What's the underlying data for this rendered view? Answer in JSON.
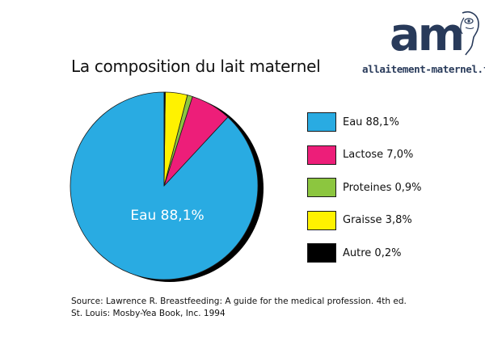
{
  "logo": {
    "mark": "am",
    "site": "allaitement-maternel.fr"
  },
  "chart_data": {
    "type": "pie",
    "title": "La composition du lait maternel",
    "slices": [
      {
        "name": "Eau",
        "value": 88.1,
        "label": "Eau 88,1%",
        "color": "#29abe2"
      },
      {
        "name": "Lactose",
        "value": 7.0,
        "label": "Lactose 7,0%",
        "color": "#ed1e79"
      },
      {
        "name": "Proteines",
        "value": 0.9,
        "label": "Proteines 0,9%",
        "color": "#8cc63f"
      },
      {
        "name": "Graisse",
        "value": 3.8,
        "label": "Graisse 3,8%",
        "color": "#fff200"
      },
      {
        "name": "Autre",
        "value": 0.2,
        "label": "Autre 0,2%",
        "color": "#000000"
      }
    ],
    "inner_label": "Eau 88,1%",
    "legend_position": "right",
    "shadow_color": "#000000"
  },
  "source": {
    "line1": "Source: Lawrence R. Breastfeeding: A guide for the medical profession. 4th ed.",
    "line2": "St. Louis: Mosby-Yea Book, Inc. 1994"
  }
}
